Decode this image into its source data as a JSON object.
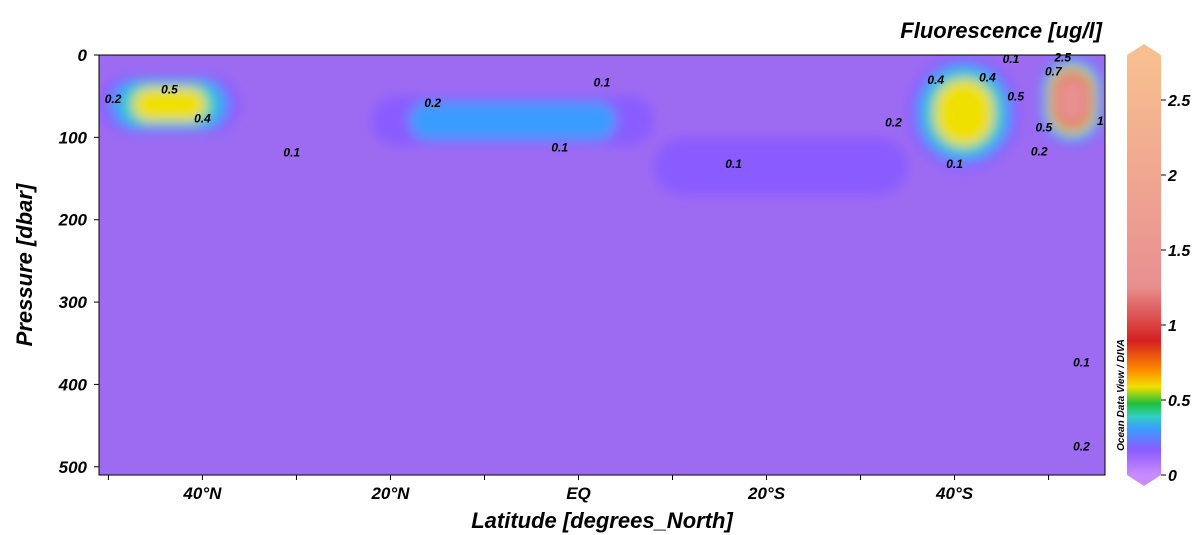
{
  "chart_data": {
    "type": "heatmap",
    "title": "Fluorescence [ug/l]",
    "xlabel": "Latitude [degrees_North]",
    "ylabel": "Pressure [dbar]",
    "x_tick_labels": [
      "40°N",
      "20°N",
      "EQ",
      "20°S",
      "40°S"
    ],
    "x_tick_values": [
      40,
      20,
      0,
      -20,
      -40
    ],
    "xlim": [
      51,
      -56
    ],
    "y_tick_labels": [
      "0",
      "100",
      "200",
      "300",
      "400",
      "500"
    ],
    "y_tick_values": [
      0,
      100,
      200,
      300,
      400,
      500
    ],
    "ylim": [
      0,
      510
    ],
    "y_inverted": true,
    "colorbar": {
      "tick_labels": [
        "0",
        "0.5",
        "1",
        "1.5",
        "2",
        "2.5"
      ],
      "tick_values": [
        0,
        0.5,
        1,
        1.5,
        2,
        2.5
      ],
      "range": [
        0,
        2.8
      ],
      "colors": [
        "#c98bff",
        "#8a5cff",
        "#3b9cff",
        "#32d0c0",
        "#1fbf3a",
        "#f0e000",
        "#ff8a00",
        "#d42020",
        "#e89090",
        "#f8c090"
      ]
    },
    "contour_labels": [
      {
        "text": "0.5",
        "lat": 43.5,
        "p": 47
      },
      {
        "text": "0.4",
        "lat": 40,
        "p": 82
      },
      {
        "text": "0.2",
        "lat": 49.5,
        "p": 58
      },
      {
        "text": "0.1",
        "lat": 30.5,
        "p": 123
      },
      {
        "text": "0.2",
        "lat": 15.5,
        "p": 63
      },
      {
        "text": "0.1",
        "lat": -2.5,
        "p": 38
      },
      {
        "text": "0.1",
        "lat": 2,
        "p": 117
      },
      {
        "text": "0.1",
        "lat": -16.5,
        "p": 137
      },
      {
        "text": "0.2",
        "lat": -33.5,
        "p": 87
      },
      {
        "text": "0.4",
        "lat": -38,
        "p": 35
      },
      {
        "text": "0.1",
        "lat": -40,
        "p": 137
      },
      {
        "text": "0.4",
        "lat": -43.5,
        "p": 32
      },
      {
        "text": "0.5",
        "lat": -46.5,
        "p": 55
      },
      {
        "text": "0.1",
        "lat": -46,
        "p": 10
      },
      {
        "text": "0.5",
        "lat": -49.5,
        "p": 93
      },
      {
        "text": "0.2",
        "lat": -49,
        "p": 122
      },
      {
        "text": "0.1",
        "lat": -53.5,
        "p": 378
      },
      {
        "text": "0.2",
        "lat": -53.5,
        "p": 480
      },
      {
        "text": "2.5",
        "lat": -51.5,
        "p": 8
      },
      {
        "text": "0.7",
        "lat": -50.5,
        "p": 25
      },
      {
        "text": "1",
        "lat": -55.5,
        "p": 85
      }
    ],
    "regions": [
      {
        "name": "north-dcm",
        "lat": [
          51,
          36
        ],
        "p": [
          25,
          95
        ],
        "peak": 0.6
      },
      {
        "name": "tropical-dcm",
        "lat": [
          22,
          -8
        ],
        "p": [
          50,
          110
        ],
        "peak": 0.3
      },
      {
        "name": "south-tropical",
        "lat": [
          -8,
          -35
        ],
        "p": [
          100,
          170
        ],
        "peak": 0.2
      },
      {
        "name": "southern-bloom",
        "lat": [
          -35,
          -47
        ],
        "p": [
          0,
          140
        ],
        "peak": 0.8
      },
      {
        "name": "polar-bloom",
        "lat": [
          -49,
          -56
        ],
        "p": [
          0,
          110
        ],
        "peak": 2.7
      }
    ],
    "grid": false,
    "watermark": "Ocean Data View / DIVA"
  }
}
